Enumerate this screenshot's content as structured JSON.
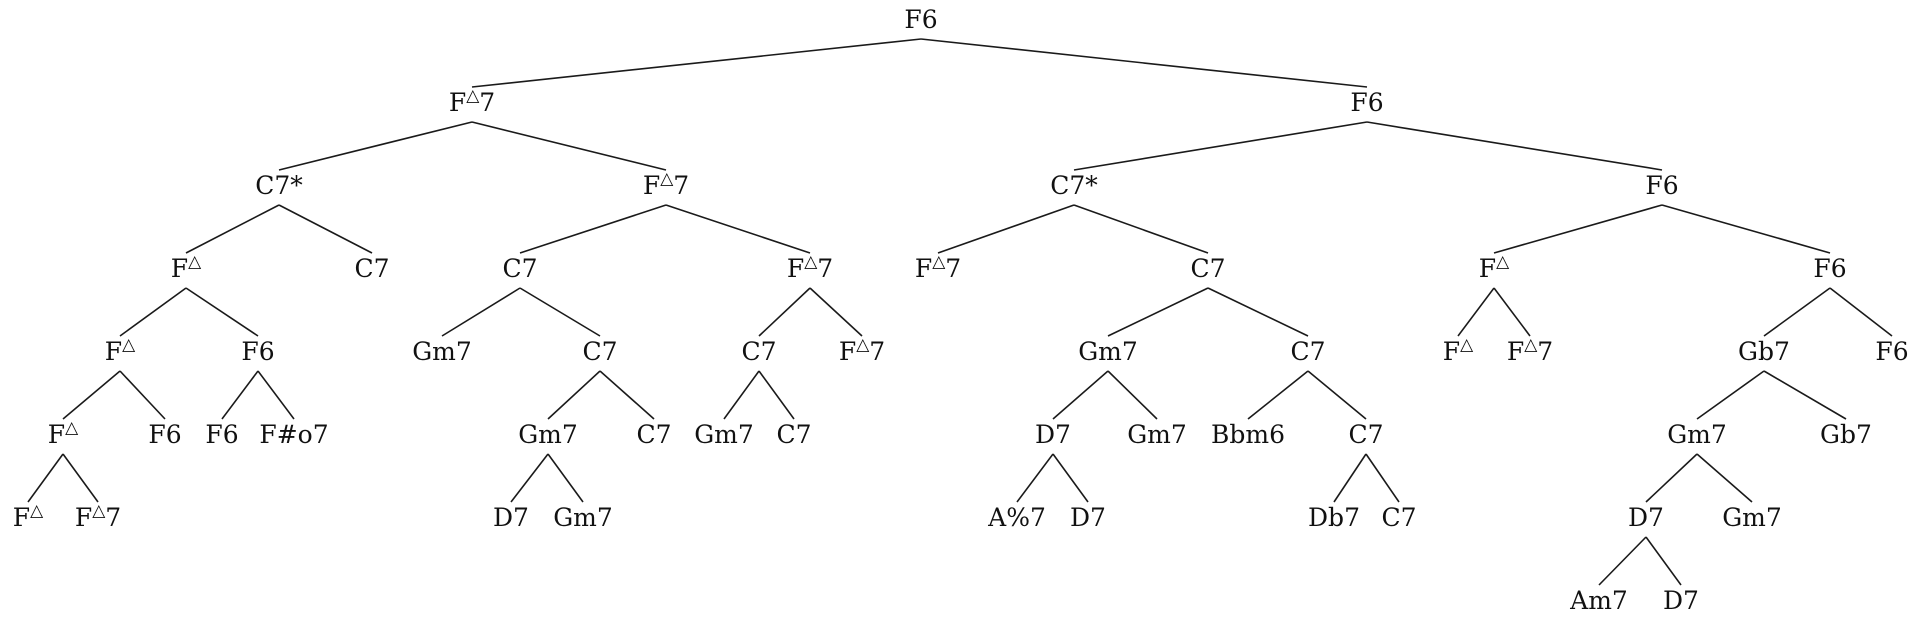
{
  "tree": {
    "label": "F6",
    "children": [
      {
        "label": "F△7",
        "children": [
          {
            "label": "C7*",
            "children": [
              {
                "label": "F△",
                "children": [
                  {
                    "label": "F△",
                    "children": [
                      {
                        "label": "F△",
                        "children": [
                          {
                            "label": "F△"
                          },
                          {
                            "label": "F△7"
                          }
                        ]
                      },
                      {
                        "label": "F6"
                      }
                    ]
                  },
                  {
                    "label": "F6",
                    "children": [
                      {
                        "label": "F6"
                      },
                      {
                        "label": "F#o7"
                      }
                    ]
                  }
                ]
              },
              {
                "label": "C7"
              }
            ]
          },
          {
            "label": "F△7",
            "children": [
              {
                "label": "C7",
                "children": [
                  {
                    "label": "Gm7"
                  },
                  {
                    "label": "C7",
                    "children": [
                      {
                        "label": "Gm7",
                        "children": [
                          {
                            "label": "D7"
                          },
                          {
                            "label": "Gm7"
                          }
                        ]
                      },
                      {
                        "label": "C7"
                      }
                    ]
                  }
                ]
              },
              {
                "label": "F△7",
                "children": [
                  {
                    "label": "C7",
                    "children": [
                      {
                        "label": "Gm7"
                      },
                      {
                        "label": "C7"
                      }
                    ]
                  },
                  {
                    "label": "F△7"
                  }
                ]
              }
            ]
          }
        ]
      },
      {
        "label": "F6",
        "children": [
          {
            "label": "C7*",
            "children": [
              {
                "label": "F△7"
              },
              {
                "label": "C7",
                "children": [
                  {
                    "label": "Gm7",
                    "children": [
                      {
                        "label": "D7",
                        "children": [
                          {
                            "label": "A%7"
                          },
                          {
                            "label": "D7"
                          }
                        ]
                      },
                      {
                        "label": "Gm7"
                      }
                    ]
                  },
                  {
                    "label": "C7",
                    "children": [
                      {
                        "label": "Bbm6"
                      },
                      {
                        "label": "C7",
                        "children": [
                          {
                            "label": "Db7"
                          },
                          {
                            "label": "C7"
                          }
                        ]
                      }
                    ]
                  }
                ]
              }
            ]
          },
          {
            "label": "F6",
            "children": [
              {
                "label": "F△",
                "children": [
                  {
                    "label": "F△"
                  },
                  {
                    "label": "F△7"
                  }
                ]
              },
              {
                "label": "F6",
                "children": [
                  {
                    "label": "Gb7",
                    "children": [
                      {
                        "label": "Gm7",
                        "children": [
                          {
                            "label": "D7",
                            "children": [
                              {
                                "label": "Am7"
                              },
                              {
                                "label": "D7"
                              }
                            ]
                          },
                          {
                            "label": "Gm7"
                          }
                        ]
                      },
                      {
                        "label": "Gb7"
                      }
                    ]
                  },
                  {
                    "label": "F6"
                  }
                ]
              }
            ]
          }
        ]
      }
    ]
  }
}
